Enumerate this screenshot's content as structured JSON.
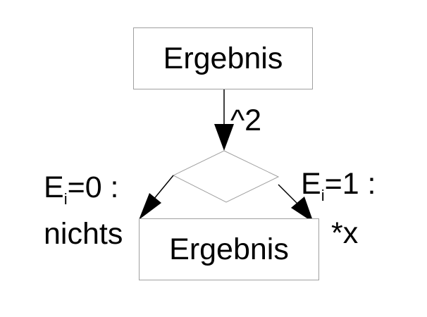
{
  "top_box": {
    "label": "Ergebnis"
  },
  "bottom_box": {
    "label": "Ergebnis"
  },
  "edge_square": {
    "label": "^2"
  },
  "left_branch": {
    "condition_var": "E",
    "condition_sub": "i",
    "condition_rest": "=0 :",
    "action": "nichts"
  },
  "right_branch": {
    "condition_var": "E",
    "condition_sub": "i",
    "condition_rest": "=1 :",
    "action": "*x"
  },
  "colors": {
    "stroke": "#000000",
    "box_border": "#a0a0a0",
    "diamond_border": "#a0a0a0"
  }
}
